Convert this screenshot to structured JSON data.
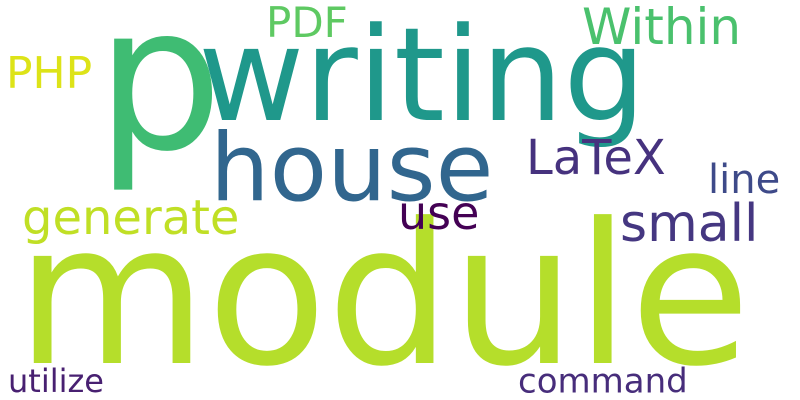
{
  "words": [
    {
      "id": "module",
      "text": "module",
      "color": "#b5de2b"
    },
    {
      "id": "p",
      "text": "p",
      "color": "#3fbc73"
    },
    {
      "id": "writing",
      "text": "writing",
      "color": "#1f988b"
    },
    {
      "id": "house",
      "text": "house",
      "color": "#31668e"
    },
    {
      "id": "pdf",
      "text": "PDF",
      "color": "#5ec962"
    },
    {
      "id": "within",
      "text": "Within",
      "color": "#4ac16d"
    },
    {
      "id": "php",
      "text": "PHP",
      "color": "#dde318"
    },
    {
      "id": "latex",
      "text": "LaTeX",
      "color": "#46327e"
    },
    {
      "id": "line",
      "text": "line",
      "color": "#3e4a89"
    },
    {
      "id": "generate",
      "text": "generate",
      "color": "#c0df25"
    },
    {
      "id": "use",
      "text": "use",
      "color": "#440154"
    },
    {
      "id": "small",
      "text": "small",
      "color": "#453781"
    },
    {
      "id": "utilize",
      "text": "utilize",
      "color": "#482071"
    },
    {
      "id": "command",
      "text": "command",
      "color": "#472d7b"
    }
  ]
}
